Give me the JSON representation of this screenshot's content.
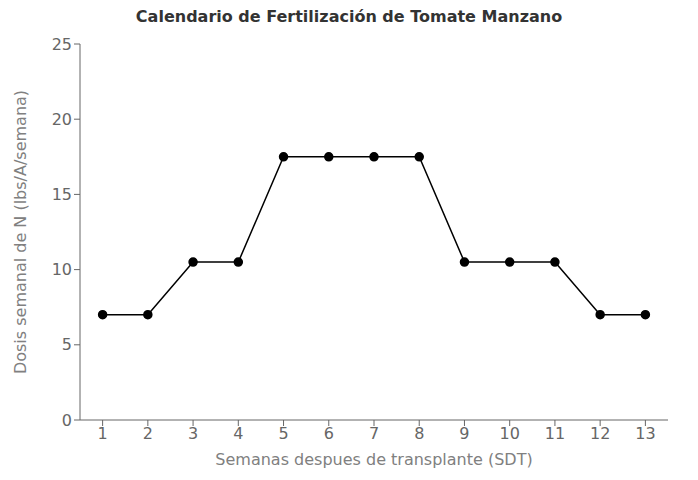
{
  "chart_data": {
    "type": "line",
    "title": "Calendario de Fertilización de Tomate Manzano",
    "xlabel": "Semanas despues de transplante (SDT)",
    "ylabel": "Dosis semanal de N (lbs/A/semana)",
    "x": [
      1,
      2,
      3,
      4,
      5,
      6,
      7,
      8,
      9,
      10,
      11,
      12,
      13
    ],
    "values": [
      7,
      7,
      10.5,
      10.5,
      17.5,
      17.5,
      17.5,
      17.5,
      10.5,
      10.5,
      10.5,
      7,
      7
    ],
    "xlim": [
      0.5,
      13.5
    ],
    "ylim": [
      0,
      25
    ],
    "xticks": [
      1,
      2,
      3,
      4,
      5,
      6,
      7,
      8,
      9,
      10,
      11,
      12,
      13
    ],
    "yticks": [
      0,
      5,
      10,
      15,
      20,
      25
    ],
    "color": "#000000",
    "marker": "circle",
    "grid": false
  }
}
